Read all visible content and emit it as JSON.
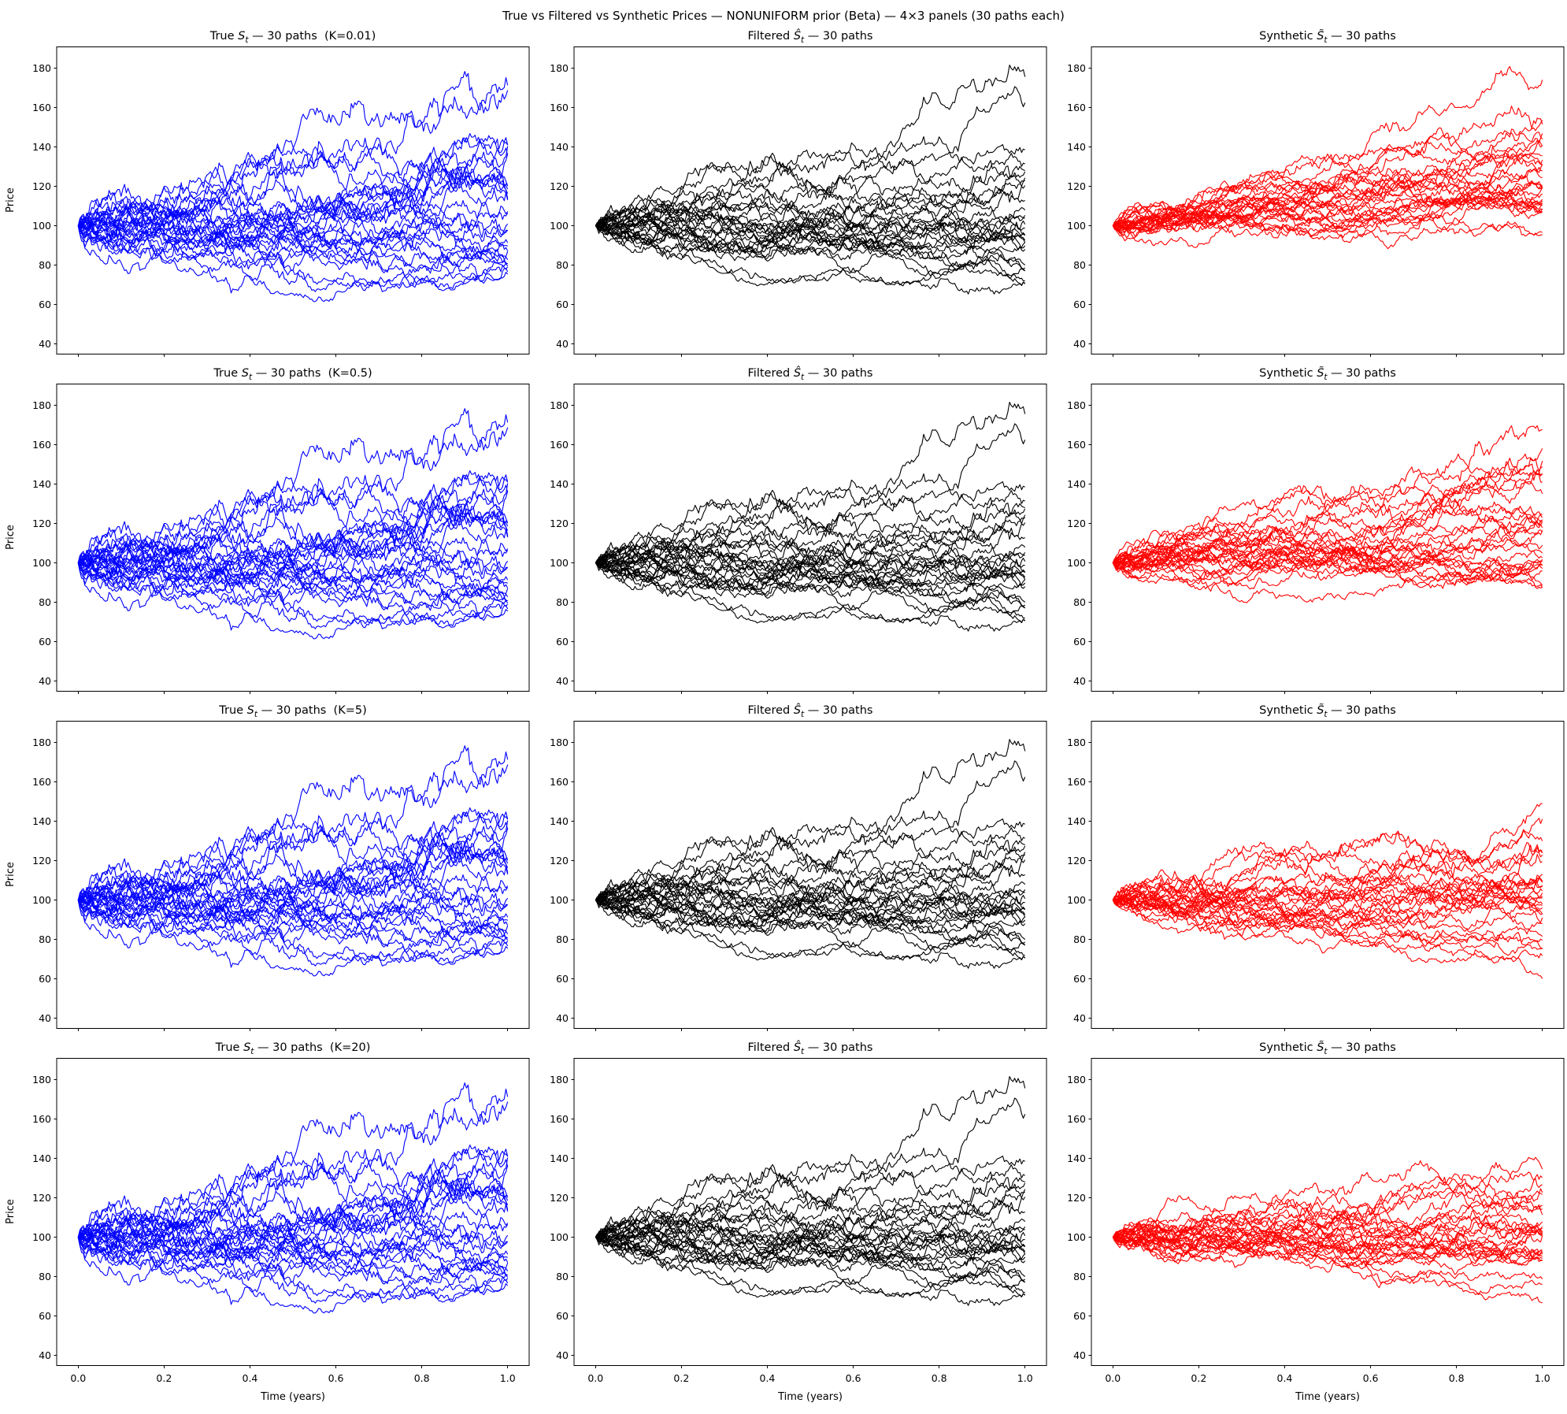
{
  "figure": {
    "title": "True vs Filtered vs Synthetic Prices — NONUNIFORM prior (Beta) — 4×3 panels (30 paths each)"
  },
  "chart_data": {
    "type": "line",
    "layout": {
      "rows": 4,
      "cols": 3,
      "sharex": true,
      "sharey": true,
      "grid": false,
      "legend": "none"
    },
    "x": {
      "label": "Time (years)",
      "ticks": [
        "0.0",
        "0.2",
        "0.4",
        "0.6",
        "0.8",
        "1.0"
      ],
      "lim": [
        -0.05,
        1.05
      ]
    },
    "y": {
      "label": "Price",
      "ticks": [
        40,
        60,
        80,
        100,
        120,
        140,
        160,
        180
      ],
      "lim": [
        35,
        191
      ]
    },
    "s0": 100,
    "n_paths": 30,
    "n_steps": 250,
    "colors": {
      "true": "#0000ff",
      "filtered": "#000000",
      "synthetic": "#ff0000"
    },
    "panels": [
      {
        "row": 0,
        "col": 0,
        "kind": "true",
        "k": "0.01",
        "title": {
          "pre": "True ",
          "sym": "S",
          "sub": "t",
          "post": " — 30 paths  (K=0.01)"
        },
        "color": "#0000ff",
        "seed": 101,
        "mu": 0.02,
        "sigma": 0.27
      },
      {
        "row": 0,
        "col": 1,
        "kind": "filtered",
        "k": null,
        "title": {
          "pre": "Filtered ",
          "sym": "Ŝ",
          "sub": "t",
          "post": " — 30 paths"
        },
        "color": "#000000",
        "seed": 202,
        "mu": 0.04,
        "sigma": 0.2
      },
      {
        "row": 0,
        "col": 2,
        "kind": "synthetic",
        "k": null,
        "title": {
          "pre": "Synthetic ",
          "sym": "S̃",
          "sub": "t",
          "post": " — 30 paths"
        },
        "color": "#ff0000",
        "seed": 301,
        "mu": 0.22,
        "sigma": 0.15
      },
      {
        "row": 1,
        "col": 0,
        "kind": "true",
        "k": "0.5",
        "title": {
          "pre": "True ",
          "sym": "S",
          "sub": "t",
          "post": " — 30 paths  (K=0.5)"
        },
        "color": "#0000ff",
        "seed": 101,
        "mu": 0.02,
        "sigma": 0.27
      },
      {
        "row": 1,
        "col": 1,
        "kind": "filtered",
        "k": null,
        "title": {
          "pre": "Filtered ",
          "sym": "Ŝ",
          "sub": "t",
          "post": " — 30 paths"
        },
        "color": "#000000",
        "seed": 202,
        "mu": 0.04,
        "sigma": 0.2
      },
      {
        "row": 1,
        "col": 2,
        "kind": "synthetic",
        "k": null,
        "title": {
          "pre": "Synthetic ",
          "sym": "S̃",
          "sub": "t",
          "post": " — 30 paths"
        },
        "color": "#ff0000",
        "seed": 302,
        "mu": 0.17,
        "sigma": 0.17
      },
      {
        "row": 2,
        "col": 0,
        "kind": "true",
        "k": "5",
        "title": {
          "pre": "True ",
          "sym": "S",
          "sub": "t",
          "post": " — 30 paths  (K=5)"
        },
        "color": "#0000ff",
        "seed": 101,
        "mu": 0.02,
        "sigma": 0.27
      },
      {
        "row": 2,
        "col": 1,
        "kind": "filtered",
        "k": null,
        "title": {
          "pre": "Filtered ",
          "sym": "Ŝ",
          "sub": "t",
          "post": " — 30 paths"
        },
        "color": "#000000",
        "seed": 202,
        "mu": 0.04,
        "sigma": 0.2
      },
      {
        "row": 2,
        "col": 2,
        "kind": "synthetic",
        "k": null,
        "title": {
          "pre": "Synthetic ",
          "sym": "S̃",
          "sub": "t",
          "post": " — 30 paths"
        },
        "color": "#ff0000",
        "seed": 303,
        "mu": 0.0,
        "sigma": 0.19
      },
      {
        "row": 3,
        "col": 0,
        "kind": "true",
        "k": "20",
        "title": {
          "pre": "True ",
          "sym": "S",
          "sub": "t",
          "post": " — 30 paths  (K=20)"
        },
        "color": "#0000ff",
        "seed": 101,
        "mu": 0.02,
        "sigma": 0.27
      },
      {
        "row": 3,
        "col": 1,
        "kind": "filtered",
        "k": null,
        "title": {
          "pre": "Filtered ",
          "sym": "Ŝ",
          "sub": "t",
          "post": " — 30 paths"
        },
        "color": "#000000",
        "seed": 202,
        "mu": 0.04,
        "sigma": 0.2
      },
      {
        "row": 3,
        "col": 2,
        "kind": "synthetic",
        "k": null,
        "title": {
          "pre": "Synthetic ",
          "sym": "S̃",
          "sub": "t",
          "post": " — 30 paths"
        },
        "color": "#ff0000",
        "seed": 304,
        "mu": 0.07,
        "sigma": 0.18
      }
    ]
  }
}
